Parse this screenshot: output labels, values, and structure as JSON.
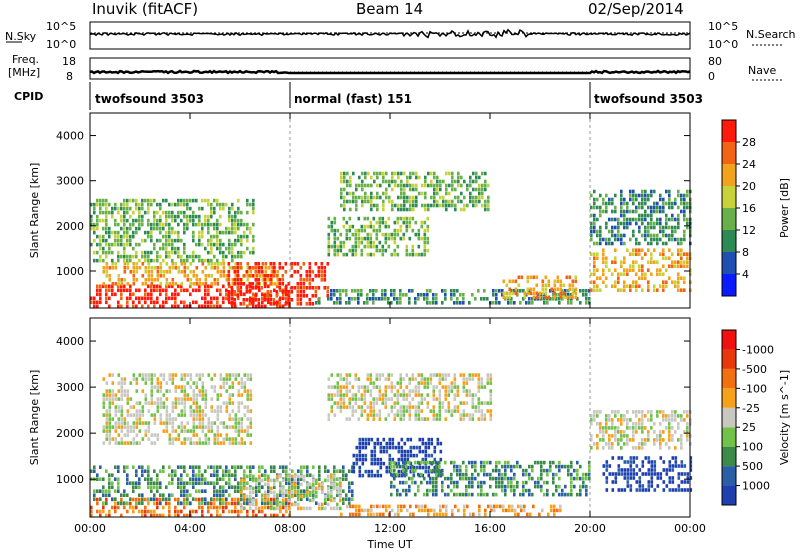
{
  "header": {
    "station": "Inuvik (fitACF)",
    "beam": "Beam 14",
    "date": "02/Sep/2014"
  },
  "summary": {
    "nsky_label": "N.Sky",
    "nsky_ticks": [
      "10^5",
      "10^0"
    ],
    "nsearch_label": "N.Search",
    "nsearch_ticks": [
      "10^5",
      "10^0"
    ],
    "freq_label": "Freq.",
    "freq_unit": "[MHz]",
    "freq_ticks": [
      "18",
      "8"
    ],
    "nave_label": "Nave",
    "nave_ticks": [
      "80",
      "0"
    ],
    "cpid_label": "CPID",
    "modes": [
      {
        "name": "twofsound 3503",
        "start_h": 0,
        "end_h": 8
      },
      {
        "name": "normal (fast) 151",
        "start_h": 8,
        "end_h": 20
      },
      {
        "name": "twofsound 3503",
        "start_h": 20,
        "end_h": 24
      }
    ]
  },
  "chart_data": [
    {
      "type": "heatmap",
      "xlabel": "",
      "ylabel": "Slant Range [km]",
      "xlim": [
        0,
        24
      ],
      "ylim": [
        180,
        4500
      ],
      "x_ticks": [
        "00:00",
        "04:00",
        "08:00",
        "12:00",
        "16:00",
        "20:00",
        "00:00"
      ],
      "y_ticks": [
        1000,
        2000,
        3000,
        4000
      ],
      "colorbar": {
        "label": "Power [dB]",
        "ticks": [
          "4",
          "8",
          "12",
          "16",
          "20",
          "24",
          "28"
        ],
        "colors": [
          "#0b1bff",
          "#1f4fb0",
          "#2e8a55",
          "#67b04a",
          "#c7d13a",
          "#f2a31e",
          "#f26414",
          "#ff1a0a"
        ]
      },
      "regions": [
        {
          "x": [
            0.0,
            8.0
          ],
          "y": [
            200,
            700
          ],
          "level": 7
        },
        {
          "x": [
            0.5,
            7.5
          ],
          "y": [
            700,
            1200
          ],
          "level": 5
        },
        {
          "x": [
            5.5,
            9.5
          ],
          "y": [
            300,
            1200
          ],
          "level": 7
        },
        {
          "x": [
            0.0,
            6.5
          ],
          "y": [
            1200,
            2600
          ],
          "level": 3
        },
        {
          "x": [
            9.5,
            13.5
          ],
          "y": [
            1400,
            2200
          ],
          "level": 3
        },
        {
          "x": [
            10.0,
            16.0
          ],
          "y": [
            2400,
            3200
          ],
          "level": 3
        },
        {
          "x": [
            9.0,
            20.0
          ],
          "y": [
            250,
            600
          ],
          "level": 2
        },
        {
          "x": [
            16.5,
            19.5
          ],
          "y": [
            400,
            900
          ],
          "level": 5
        },
        {
          "x": [
            20.0,
            24.0
          ],
          "y": [
            600,
            1500
          ],
          "level": 5
        },
        {
          "x": [
            20.0,
            24.0
          ],
          "y": [
            1600,
            2800
          ],
          "level": 2
        }
      ]
    },
    {
      "type": "heatmap",
      "xlabel": "Time UT",
      "ylabel": "Slant Range [km]",
      "xlim": [
        0,
        24
      ],
      "ylim": [
        180,
        4500
      ],
      "x_ticks": [
        "00:00",
        "04:00",
        "08:00",
        "12:00",
        "16:00",
        "20:00",
        "00:00"
      ],
      "y_ticks": [
        1000,
        2000,
        3000,
        4000
      ],
      "colorbar": {
        "label": "Velocity [m s^-1]",
        "ticks": [
          "1000",
          "500",
          "100",
          "25",
          "-25",
          "-100",
          "-500",
          "-1000"
        ],
        "colors": [
          "#1f3fb0",
          "#2a5fa8",
          "#3b8a4a",
          "#72c24a",
          "#c8c8c0",
          "#f5a21a",
          "#f2700f",
          "#e8380a",
          "#f01010"
        ]
      },
      "regions": [
        {
          "x": [
            0.0,
            8.0
          ],
          "y": [
            200,
            600
          ],
          "level": 6
        },
        {
          "x": [
            0.0,
            10.5
          ],
          "y": [
            500,
            1300
          ],
          "level": 2
        },
        {
          "x": [
            0.5,
            6.5
          ],
          "y": [
            1800,
            3300
          ],
          "level": 4
        },
        {
          "x": [
            6.0,
            10.0
          ],
          "y": [
            400,
            1100
          ],
          "level": 4
        },
        {
          "x": [
            9.5,
            16.0
          ],
          "y": [
            2300,
            3300
          ],
          "level": 4
        },
        {
          "x": [
            10.5,
            14.0
          ],
          "y": [
            1100,
            1900
          ],
          "level": 0
        },
        {
          "x": [
            12.0,
            20.0
          ],
          "y": [
            700,
            1400
          ],
          "level": 2
        },
        {
          "x": [
            10.0,
            19.0
          ],
          "y": [
            220,
            450
          ],
          "level": 5
        },
        {
          "x": [
            20.5,
            24.0
          ],
          "y": [
            800,
            1500
          ],
          "level": 0
        },
        {
          "x": [
            20.0,
            24.0
          ],
          "y": [
            1700,
            2500
          ],
          "level": 4
        }
      ]
    }
  ]
}
